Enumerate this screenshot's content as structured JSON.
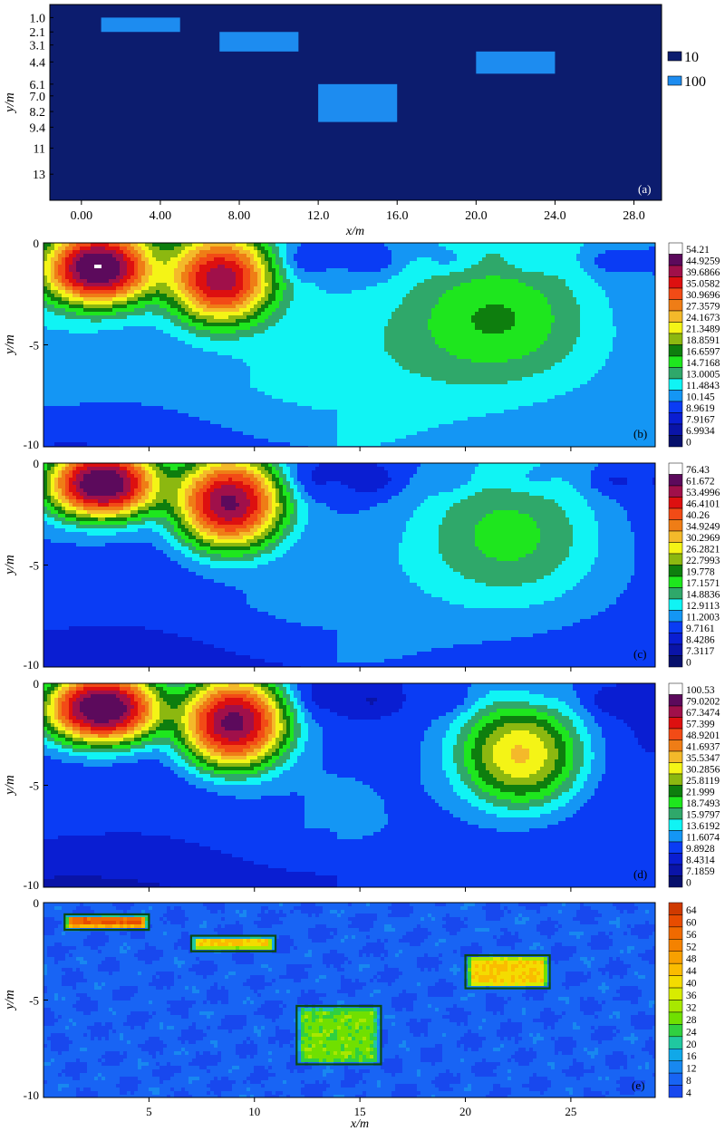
{
  "chart_data": [
    {
      "id": "a",
      "type": "heatmap",
      "panel_label": "(a)",
      "xlabel": "x/m",
      "ylabel": "y/m",
      "xlim": [
        -1.6,
        29.4
      ],
      "ylim": [
        0,
        15
      ],
      "x_ticks": [
        "0.00",
        "4.00",
        "8.00",
        "12.0",
        "16.0",
        "20.0",
        "24.0",
        "28.0"
      ],
      "x_tick_values": [
        0,
        4,
        8,
        12,
        16,
        20,
        24,
        28
      ],
      "y_ticks": [
        "1.0",
        "2.1",
        "3.1",
        "4.4",
        "6.1",
        "7.0",
        "8.2",
        "9.4",
        "11",
        "13"
      ],
      "y_tick_values": [
        1.0,
        2.1,
        3.1,
        4.4,
        6.1,
        7.0,
        8.2,
        9.4,
        11,
        13
      ],
      "background_value": 10,
      "anomalies": [
        {
          "x": [
            1,
            5
          ],
          "y": [
            1.0,
            2.1
          ],
          "value": 100
        },
        {
          "x": [
            7,
            11
          ],
          "y": [
            2.1,
            3.6
          ],
          "value": 100
        },
        {
          "x": [
            20,
            24
          ],
          "y": [
            3.6,
            5.3
          ],
          "value": 100
        },
        {
          "x": [
            12,
            16
          ],
          "y": [
            6.1,
            9.0
          ],
          "value": 100
        }
      ],
      "legend": [
        {
          "label": "10",
          "color": "#0c1c6e"
        },
        {
          "label": "100",
          "color": "#1d8cf0"
        }
      ]
    },
    {
      "id": "b",
      "type": "heatmap",
      "panel_label": "(b)",
      "ylabel": "y/m",
      "xlim": [
        0,
        29
      ],
      "ylim": [
        0,
        10
      ],
      "y_ticks": [
        "0",
        "-5",
        "-10"
      ],
      "y_tick_values": [
        0,
        -5,
        -10
      ],
      "colorbar_labels": [
        "54.21",
        "44.9259",
        "39.6866",
        "35.0582",
        "30.9696",
        "27.3579",
        "24.1673",
        "21.3489",
        "18.8591",
        "16.6597",
        "14.7168",
        "13.0005",
        "11.4843",
        "10.145",
        "8.9619",
        "7.9167",
        "6.9934",
        "0"
      ],
      "background": 10.8,
      "background_low": 9.0,
      "anomalies": [
        {
          "x": 2.6,
          "y": 1.2,
          "peak": 54,
          "sx": 1.55,
          "sy": 1.05
        },
        {
          "x": 8.4,
          "y": 1.7,
          "peak": 44,
          "sx": 1.45,
          "sy": 1.3
        },
        {
          "x": 21.6,
          "y": 3.9,
          "peak": 6.0,
          "sx": 3.0,
          "sy": 2.1
        }
      ]
    },
    {
      "id": "c",
      "type": "heatmap",
      "panel_label": "(c)",
      "ylabel": "y/m",
      "xlim": [
        0,
        29
      ],
      "ylim": [
        0,
        10
      ],
      "y_ticks": [
        "0",
        "-5",
        "-10"
      ],
      "y_tick_values": [
        0,
        -5,
        -10
      ],
      "colorbar_labels": [
        "76.43",
        "61.672",
        "53.4996",
        "46.4101",
        "40.26",
        "34.9249",
        "30.2969",
        "26.2821",
        "22.7993",
        "19.778",
        "17.1571",
        "14.8836",
        "12.9113",
        "11.2003",
        "9.7161",
        "8.4286",
        "7.3117",
        "0"
      ],
      "background": 10.5,
      "background_low": 8.6,
      "anomalies": [
        {
          "x": 2.8,
          "y": 1.0,
          "peak": 76,
          "sx": 1.5,
          "sy": 0.95
        },
        {
          "x": 8.8,
          "y": 1.9,
          "peak": 64,
          "sx": 1.45,
          "sy": 1.3
        },
        {
          "x": 22.2,
          "y": 3.7,
          "peak": 7.5,
          "sx": 3.0,
          "sy": 2.3
        }
      ]
    },
    {
      "id": "d",
      "type": "heatmap",
      "panel_label": "(d)",
      "ylabel": "y/m",
      "xlim": [
        0,
        29
      ],
      "ylim": [
        0,
        10
      ],
      "y_ticks": [
        "0",
        "-5",
        "-10"
      ],
      "y_tick_values": [
        0,
        -5,
        -10
      ],
      "colorbar_labels": [
        "100.53",
        "79.0202",
        "67.3474",
        "57.399",
        "48.9201",
        "41.6937",
        "35.5347",
        "30.2856",
        "25.8119",
        "21.999",
        "18.7493",
        "15.9797",
        "13.6192",
        "11.6074",
        "9.8928",
        "8.4314",
        "7.1859",
        "0"
      ],
      "background": 10.3,
      "background_low": 8.2,
      "anomalies": [
        {
          "x": 2.8,
          "y": 1.2,
          "peak": 100,
          "sx": 1.5,
          "sy": 0.95
        },
        {
          "x": 9.0,
          "y": 1.9,
          "peak": 84,
          "sx": 1.4,
          "sy": 1.25
        },
        {
          "x": 22.6,
          "y": 3.5,
          "peak": 26,
          "sx": 1.75,
          "sy": 1.55
        }
      ]
    },
    {
      "id": "e",
      "type": "heatmap",
      "panel_label": "(e)",
      "xlabel": "x/m",
      "ylabel": "y/m",
      "xlim": [
        0,
        29
      ],
      "ylim": [
        0,
        10
      ],
      "x_ticks": [
        "5",
        "10",
        "15",
        "20",
        "25"
      ],
      "x_tick_values": [
        5,
        10,
        15,
        20,
        25
      ],
      "y_ticks": [
        "0",
        "-5",
        "-10"
      ],
      "y_tick_values": [
        0,
        -5,
        -10
      ],
      "colorbar_labels": [
        "64",
        "60",
        "56",
        "52",
        "48",
        "44",
        "40",
        "36",
        "32",
        "28",
        "24",
        "20",
        "16",
        "12",
        "8",
        "4"
      ],
      "background": 9,
      "blocks": [
        {
          "x": [
            1,
            5
          ],
          "y": [
            0.6,
            1.4
          ],
          "value": 61
        },
        {
          "x": [
            7,
            11
          ],
          "y": [
            1.7,
            2.5
          ],
          "value": 45
        },
        {
          "x": [
            20,
            24
          ],
          "y": [
            2.7,
            4.4
          ],
          "value": 44
        },
        {
          "x": [
            12,
            16
          ],
          "y": [
            5.3,
            8.3
          ],
          "value": 30
        }
      ]
    }
  ],
  "colors": {
    "b_scale": [
      "#ffffff",
      "#5c0a5c",
      "#a0104a",
      "#dd1010",
      "#f24b16",
      "#ef7d16",
      "#f4b92a",
      "#f4f416",
      "#8cb810",
      "#0e7e0e",
      "#1ee61e",
      "#2fa86a",
      "#10f4f4",
      "#1496f4",
      "#0a3cf4",
      "#0a1ed2",
      "#0a14a8",
      "#06106c"
    ],
    "e_scale": [
      "#cf3a00",
      "#e84c00",
      "#f06a00",
      "#f48200",
      "#f8a000",
      "#fabc00",
      "#f4dc00",
      "#d8ec00",
      "#a8e800",
      "#70e000",
      "#30d040",
      "#20c8a0",
      "#10a8e8",
      "#1888f0",
      "#1864f4",
      "#1848ee"
    ]
  }
}
